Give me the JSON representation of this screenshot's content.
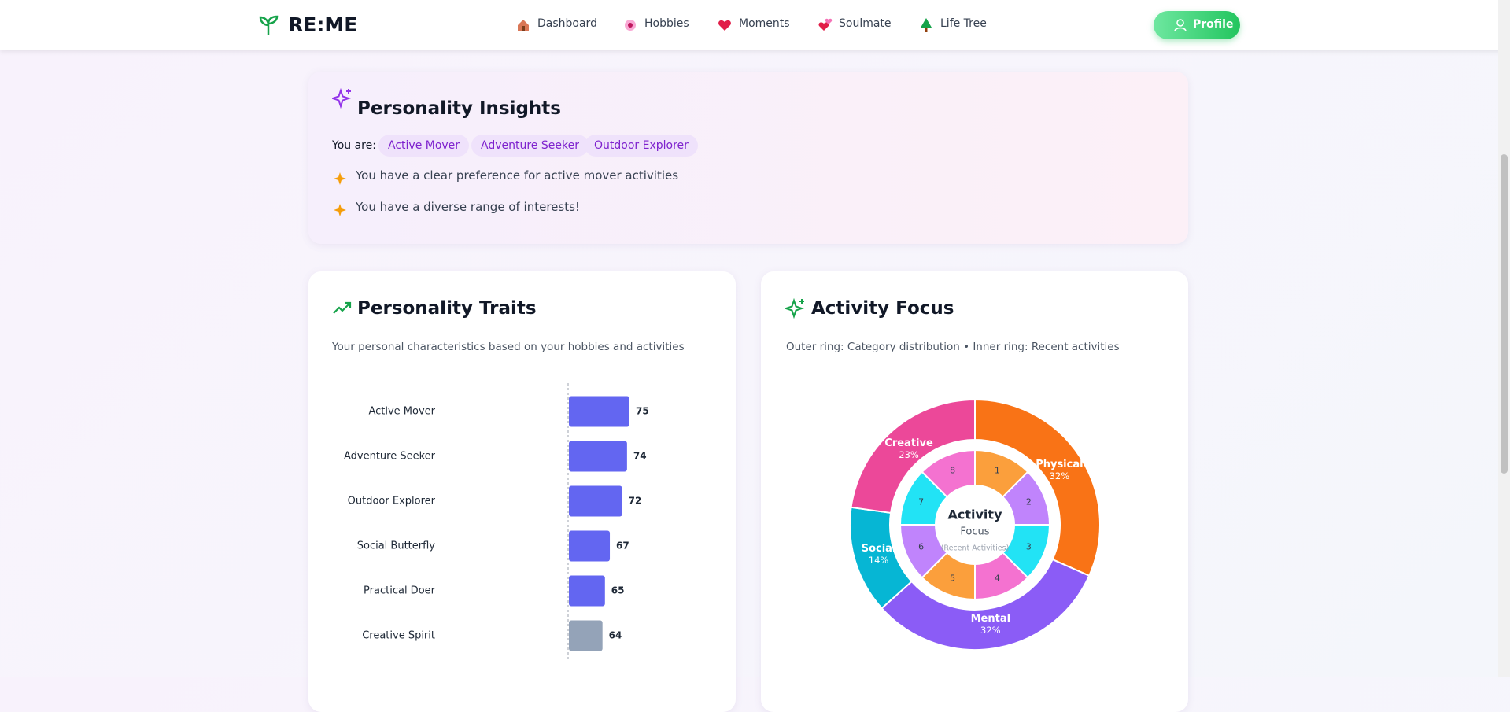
{
  "nav": {
    "brand": "RE:ME",
    "items": [
      "Dashboard",
      "Hobbies",
      "Moments",
      "Soulmate",
      "Life Tree"
    ],
    "profile": "Profile"
  },
  "insights": {
    "title": "Personality Insights",
    "prefix": "You are:",
    "tags": [
      "Active Mover",
      "Adventure Seeker",
      "Outdoor Explorer"
    ],
    "points": [
      "You have a clear preference for active mover activities",
      "You have a diverse range of interests!"
    ]
  },
  "chart_data": [
    {
      "type": "hbar",
      "title": "Personality Traits",
      "subtitle": "Your personal characteristics based on your hobbies and activities",
      "categories": [
        "Active Mover",
        "Adventure Seeker",
        "Outdoor Explorer",
        "Social Butterfly",
        "Practical Doer",
        "Creative Spirit"
      ],
      "values": [
        75,
        74,
        72,
        67,
        65,
        64
      ],
      "colors": [
        "#6366f1",
        "#6366f1",
        "#6366f1",
        "#6366f1",
        "#6366f1",
        "#94a3b8"
      ],
      "xlim": [
        50,
        100
      ]
    },
    {
      "type": "donut",
      "title": "Activity Focus",
      "subtitle": "Outer ring: Category distribution • Inner ring: Recent activities",
      "categories": [
        "Physical",
        "Mental",
        "Social",
        "Creative"
      ],
      "values": [
        32,
        32,
        14,
        23
      ],
      "value_labels": [
        "32%",
        "32%",
        "14%",
        "23%"
      ],
      "colors": [
        "#f97316",
        "#8b5cf6",
        "#06b6d4",
        "#ec4899"
      ],
      "inner_categories": [
        "1",
        "2",
        "3",
        "4",
        "5",
        "6",
        "7",
        "8"
      ],
      "inner_colors": [
        "#fb9f3c",
        "#c084fc",
        "#22e3f5",
        "#f472d0",
        "#fb9f3c",
        "#c084fc",
        "#22e3f5",
        "#f472d0"
      ],
      "center_title": "Activity",
      "center_subtitle": "Focus",
      "center_note": "(Recent Activities)"
    }
  ]
}
